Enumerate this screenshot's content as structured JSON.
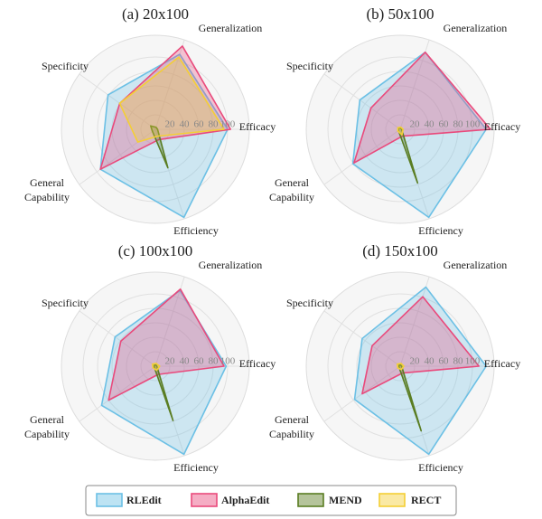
{
  "chart_data": [
    {
      "type": "radar",
      "title": "(a) 20x100",
      "categories": [
        "Efficacy",
        "Generalization",
        "Specificity",
        "General Capability",
        "Efficiency"
      ],
      "ylim": [
        0,
        130
      ],
      "yticks": [
        20,
        40,
        60,
        80,
        100
      ],
      "grid": true,
      "series": [
        {
          "name": "RLEdit",
          "color": "#6cc0e5",
          "values": [
            100,
            109,
            81,
            94,
            128
          ]
        },
        {
          "name": "AlphaEdit",
          "color": "#e94a7c",
          "values": [
            104,
            121,
            61,
            94,
            15
          ]
        },
        {
          "name": "MEND",
          "color": "#5a7d22",
          "values": [
            3,
            3,
            8,
            5,
            56
          ]
        },
        {
          "name": "RECT",
          "color": "#f4cf35",
          "values": [
            95,
            105,
            61,
            30,
            10
          ]
        }
      ]
    },
    {
      "type": "radar",
      "title": "(b) 50x100",
      "categories": [
        "Efficacy",
        "Generalization",
        "Specificity",
        "General Capability",
        "Efficiency"
      ],
      "ylim": [
        0,
        130
      ],
      "yticks": [
        20,
        40,
        60,
        80,
        100
      ],
      "grid": true,
      "series": [
        {
          "name": "RLEdit",
          "color": "#6cc0e5",
          "values": [
            119,
            112,
            69,
            81,
            128
          ]
        },
        {
          "name": "AlphaEdit",
          "color": "#e94a7c",
          "values": [
            125,
            112,
            50,
            79,
            10
          ]
        },
        {
          "name": "MEND",
          "color": "#5a7d22",
          "values": [
            2,
            2,
            3,
            3,
            78
          ]
        },
        {
          "name": "RECT",
          "color": "#f4cf35",
          "values": [
            4,
            3,
            4,
            4,
            8
          ]
        }
      ]
    },
    {
      "type": "radar",
      "title": "(c) 100x100",
      "categories": [
        "Efficacy",
        "Generalization",
        "Specificity",
        "General Capability",
        "Efficiency"
      ],
      "ylim": [
        0,
        130
      ],
      "yticks": [
        20,
        40,
        60,
        80,
        100
      ],
      "grid": true,
      "series": [
        {
          "name": "RLEdit",
          "color": "#6cc0e5",
          "values": [
            98,
            110,
            69,
            92,
            128
          ]
        },
        {
          "name": "AlphaEdit",
          "color": "#e94a7c",
          "values": [
            95,
            112,
            59,
            80,
            12
          ]
        },
        {
          "name": "MEND",
          "color": "#5a7d22",
          "values": [
            2,
            2,
            2,
            2,
            79
          ]
        },
        {
          "name": "RECT",
          "color": "#f4cf35",
          "values": [
            6,
            4,
            5,
            4,
            6
          ]
        }
      ]
    },
    {
      "type": "radar",
      "title": "(d) 150x100",
      "categories": [
        "Efficacy",
        "Generalization",
        "Specificity",
        "General Capability",
        "Efficiency"
      ],
      "ylim": [
        0,
        130
      ],
      "yticks": [
        20,
        40,
        60,
        80,
        100
      ],
      "grid": true,
      "series": [
        {
          "name": "RLEdit",
          "color": "#6cc0e5",
          "values": [
            119,
            115,
            65,
            78,
            128
          ]
        },
        {
          "name": "AlphaEdit",
          "color": "#e94a7c",
          "values": [
            109,
            101,
            48,
            65,
            10
          ]
        },
        {
          "name": "MEND",
          "color": "#5a7d22",
          "values": [
            2,
            2,
            2,
            2,
            94
          ]
        },
        {
          "name": "RECT",
          "color": "#f4cf35",
          "values": [
            5,
            4,
            5,
            4,
            5
          ]
        }
      ]
    }
  ]
}
